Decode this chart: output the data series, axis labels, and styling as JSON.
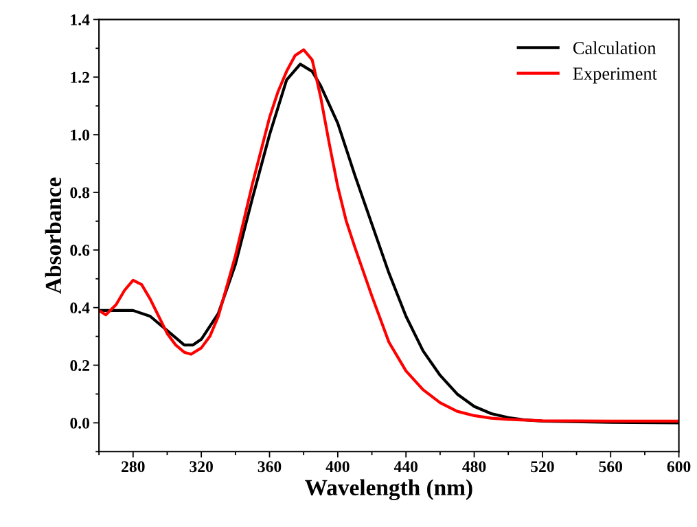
{
  "chart_data": {
    "type": "line",
    "xlabel": "Wavelength (nm)",
    "ylabel": "Absorbance",
    "xlim": [
      260,
      600
    ],
    "xticks": [
      280,
      320,
      360,
      400,
      440,
      480,
      520,
      560,
      600
    ],
    "ylim": [
      -0.1,
      1.4
    ],
    "yticks": [
      {
        "value": 0,
        "label": "0.0"
      },
      0.2,
      0.4,
      0.6,
      0.8,
      {
        "value": 1,
        "label": "1.0"
      },
      1.2,
      1.4
    ],
    "legend": "top right",
    "grid": false,
    "marker": "none",
    "line_style": "solid",
    "series": [
      {
        "name": "Calculation",
        "color": "#000000",
        "x": [
          260,
          270,
          280,
          290,
          300,
          310,
          315,
          320,
          330,
          340,
          350,
          360,
          370,
          378,
          385,
          390,
          400,
          410,
          420,
          430,
          440,
          450,
          460,
          470,
          480,
          490,
          500,
          510,
          520,
          560,
          600
        ],
        "values": [
          0.39,
          0.39,
          0.39,
          0.37,
          0.32,
          0.27,
          0.27,
          0.29,
          0.38,
          0.55,
          0.78,
          1.0,
          1.19,
          1.245,
          1.22,
          1.17,
          1.04,
          0.86,
          0.69,
          0.52,
          0.37,
          0.25,
          0.165,
          0.1,
          0.057,
          0.032,
          0.018,
          0.01,
          0.006,
          0.002,
          0.0
        ]
      },
      {
        "name": "Experiment",
        "color": "#ff0000",
        "x": [
          260,
          264,
          270,
          275,
          280,
          285,
          290,
          295,
          300,
          305,
          310,
          314,
          320,
          325,
          330,
          340,
          350,
          360,
          365,
          370,
          375,
          380,
          385,
          390,
          395,
          400,
          405,
          410,
          420,
          430,
          440,
          450,
          460,
          470,
          480,
          490,
          500,
          520,
          560,
          600
        ],
        "values": [
          0.39,
          0.375,
          0.41,
          0.46,
          0.495,
          0.48,
          0.43,
          0.37,
          0.31,
          0.27,
          0.245,
          0.238,
          0.26,
          0.3,
          0.37,
          0.58,
          0.83,
          1.06,
          1.15,
          1.22,
          1.275,
          1.295,
          1.26,
          1.13,
          0.97,
          0.82,
          0.7,
          0.61,
          0.44,
          0.28,
          0.18,
          0.115,
          0.07,
          0.04,
          0.025,
          0.016,
          0.012,
          0.007,
          0.006,
          0.006
        ]
      }
    ]
  }
}
